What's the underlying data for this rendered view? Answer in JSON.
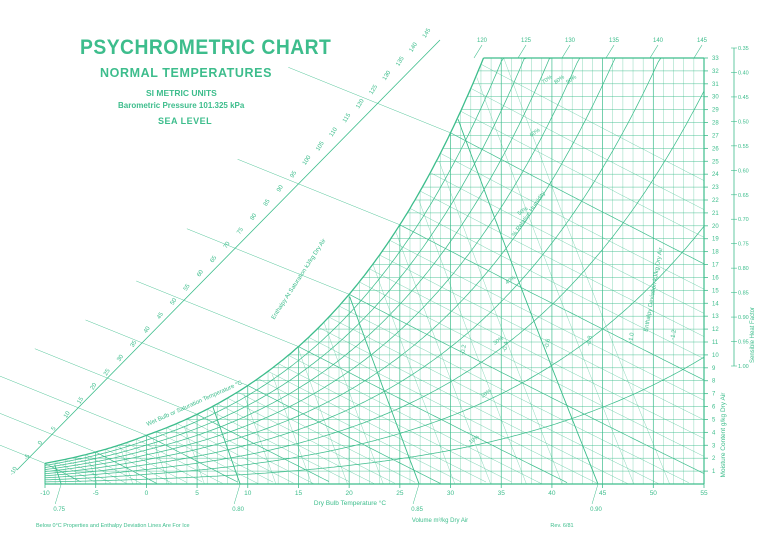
{
  "colors": {
    "ink": "#3dbd8c",
    "background": "#ffffff"
  },
  "header": {
    "title": "PSYCHROMETRIC CHART",
    "subtitle": "NORMAL TEMPERATURES",
    "units": "SI METRIC UNITS",
    "pressure": "Barometric Pressure 101.325 kPa",
    "level": "SEA LEVEL"
  },
  "chart_data": {
    "type": "line",
    "xlabel": "Dry Bulb Temperature °C",
    "ylabel": "Moisture Content g/kg Dry Air",
    "right_scale_label": "Sensible Heat Factor",
    "volume_label": "Volume m³/kg Dry Air",
    "enthalpy_label": "Enthalpy At Saturation kJ/kg Dry Air",
    "wetbulb_label": "Wet Bulb or Saturation Temperature °C",
    "rh_label": "% Relative Humidity",
    "deviation_label": "Enthalpy Deviation kJ/kg Dry Air",
    "footnote": "Below 0°C Properties and Enthalpy Deviation Lines Are For Ice",
    "revision": "Rev. 6/81",
    "xlim": [
      -10,
      55
    ],
    "ylim": [
      0,
      33
    ],
    "x_ticks": [
      "-10",
      "-5",
      "0",
      "5",
      "10",
      "15",
      "20",
      "25",
      "30",
      "35",
      "40",
      "45",
      "50",
      "55"
    ],
    "y_ticks": [
      "1",
      "2",
      "3",
      "4",
      "5",
      "6",
      "7",
      "8",
      "9",
      "10",
      "11",
      "12",
      "13",
      "14",
      "15",
      "16",
      "17",
      "18",
      "19",
      "20",
      "21",
      "22",
      "23",
      "24",
      "25",
      "26",
      "27",
      "28",
      "29",
      "30",
      "31",
      "32",
      "33"
    ],
    "relative_humidity": [
      10,
      20,
      30,
      40,
      50,
      60,
      70,
      80,
      90,
      100
    ],
    "rh_labels": [
      "10%",
      "20%",
      "30%",
      "40%",
      "50%",
      "60%",
      "70%",
      "80%",
      "90%"
    ],
    "volume_lines": [
      0.75,
      0.8,
      0.85,
      0.9
    ],
    "volume_labels": [
      "0.75",
      "0.80",
      "0.85",
      "0.90"
    ],
    "enthalpy_scale": [
      "-10",
      "-5",
      "0",
      "5",
      "10",
      "15",
      "20",
      "25",
      "30",
      "35",
      "40",
      "45",
      "50",
      "55",
      "60",
      "65",
      "70",
      "75",
      "80",
      "85",
      "90",
      "95",
      "100",
      "105",
      "110",
      "115",
      "120",
      "125",
      "130",
      "135",
      "140",
      "145"
    ],
    "enthalpy_top": [
      "120",
      "125",
      "130",
      "135",
      "140",
      "145"
    ],
    "wetbulb_marks": [
      "-10",
      "-5",
      "0",
      "5",
      "10",
      "15",
      "20",
      "25",
      "30",
      "35",
      "40",
      "45",
      "50"
    ],
    "deviation_labels": [
      "-0.2",
      "-0.4",
      "-0.6",
      "-0.8",
      "-1.0",
      "-1.2"
    ],
    "shf_ticks": [
      "0.35",
      "0.40",
      "0.45",
      "0.50",
      "0.55",
      "0.60",
      "0.65",
      "0.70",
      "0.75",
      "0.80",
      "0.85",
      "0.90",
      "0.95",
      "1.00"
    ]
  }
}
